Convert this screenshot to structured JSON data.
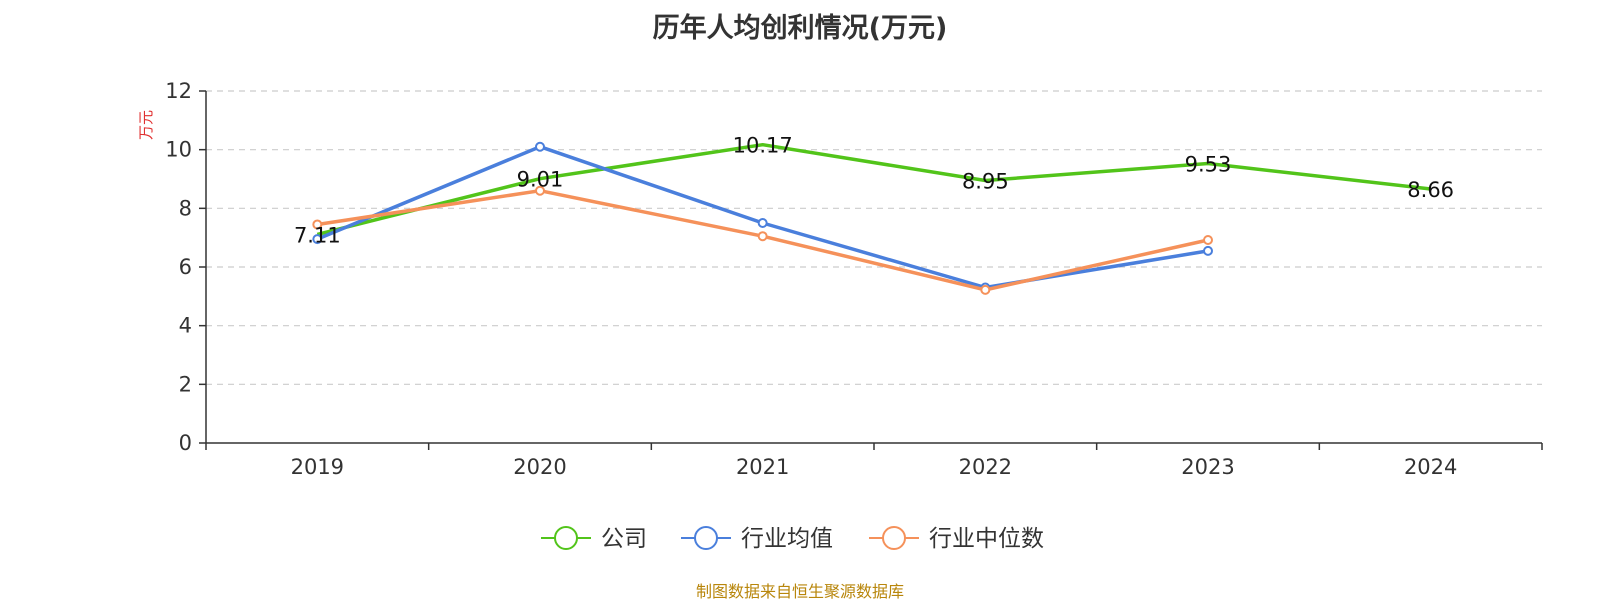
{
  "chart_data": {
    "type": "line",
    "title": "历年人均创利情况(万元)",
    "ylabel": "万元",
    "categories": [
      "2019",
      "2020",
      "2021",
      "2022",
      "2023",
      "2024"
    ],
    "ylim": [
      0,
      12
    ],
    "yticks": [
      0,
      2,
      4,
      6,
      8,
      10,
      12
    ],
    "grid": true,
    "legend_position": "bottom",
    "series": [
      {
        "name": "公司",
        "color": "#52c41a",
        "values": [
          7.11,
          9.01,
          10.17,
          8.95,
          9.53,
          8.66
        ],
        "labels": [
          "7.11",
          "9.01",
          "10.17",
          "8.95",
          "9.53",
          "8.66"
        ],
        "show_markers": false
      },
      {
        "name": "行业均值",
        "color": "#4a7fdc",
        "values": [
          6.95,
          10.1,
          7.5,
          5.3,
          6.55,
          null
        ],
        "show_markers": true
      },
      {
        "name": "行业中位数",
        "color": "#f5915a",
        "values": [
          7.45,
          8.6,
          7.05,
          5.22,
          6.92,
          null
        ],
        "show_markers": true
      }
    ]
  },
  "footer": {
    "source": "制图数据来自恒生聚源数据库"
  }
}
